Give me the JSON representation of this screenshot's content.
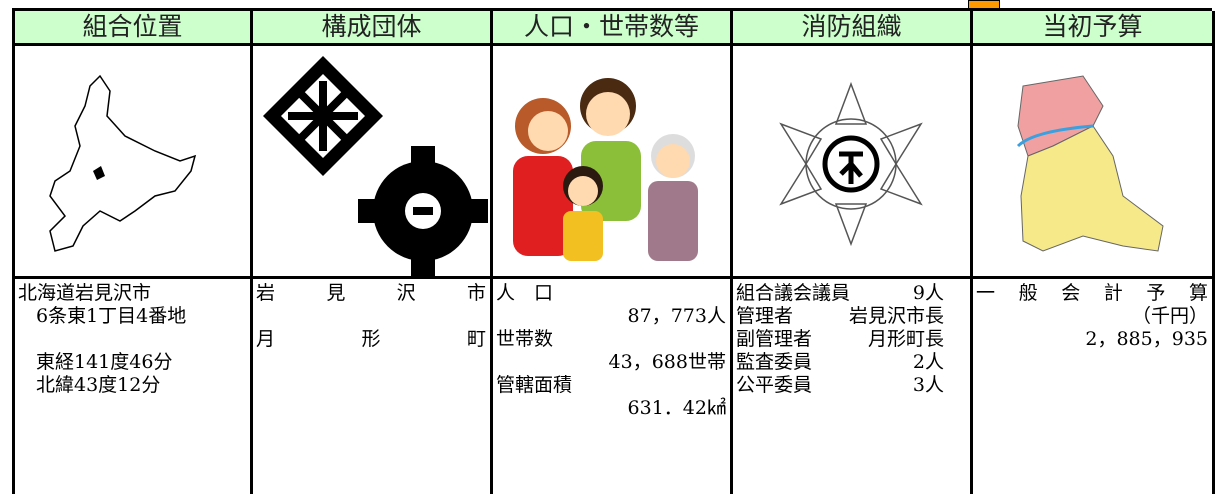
{
  "table": {
    "headers": [
      "組合位置",
      "構成団体",
      "人口・世帯数等",
      "消防組織",
      "当初予算"
    ],
    "location": [
      "北海道岩見沢市",
      "6条東1丁目4番地",
      "東経141度46分",
      "北緯43度12分"
    ],
    "members": [
      "岩見沢市",
      "月形町"
    ],
    "population": {
      "label": "人　口",
      "value": "87，773人"
    },
    "households": {
      "label": "世帯数",
      "value": "43，688世帯"
    },
    "area": {
      "label": "管轄面積",
      "value": "631．42㎢"
    },
    "fire": [
      {
        "label": "組合議会議員",
        "value": "9人"
      },
      {
        "label": "管理者",
        "value": "岩見沢市長"
      },
      {
        "label": "副管理者",
        "value": "月形町長"
      },
      {
        "label": "監査委員",
        "value": "2人"
      },
      {
        "label": "公平委員",
        "value": "3人"
      }
    ],
    "budget": {
      "label": "一般会計予算",
      "unit": "（千円）",
      "value": "2，885，935"
    }
  }
}
